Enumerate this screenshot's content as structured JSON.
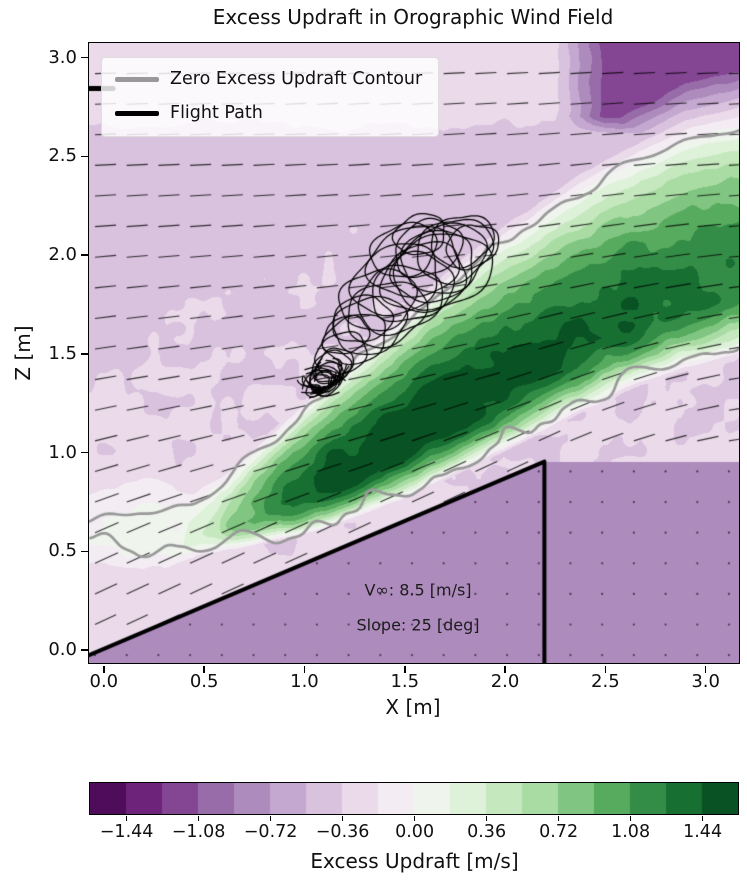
{
  "chart_data": {
    "type": "heatmap",
    "title": "Excess Updraft in Orographic Wind Field",
    "xlabel": "X [m]",
    "ylabel": "Z [m]",
    "xlim": [
      -0.07,
      3.17
    ],
    "ylim": [
      -0.07,
      3.07
    ],
    "xticks": [
      "0.0",
      "0.5",
      "1.0",
      "1.5",
      "2.0",
      "2.5",
      "3.0"
    ],
    "xtick_values": [
      0,
      0.5,
      1,
      1.5,
      2,
      2.5,
      3
    ],
    "yticks": [
      "0.0",
      "0.5",
      "1.0",
      "1.5",
      "2.0",
      "2.5",
      "3.0"
    ],
    "ytick_values": [
      0,
      0.5,
      1,
      1.5,
      2,
      2.5,
      3
    ],
    "grid": false,
    "legend_position": "upper left",
    "legend": [
      {
        "label": "Zero Excess Updraft Contour",
        "color": "#999999",
        "line_width": 5
      },
      {
        "label": "Flight Path",
        "color": "#000000",
        "line_width": 5
      }
    ],
    "annotations": [
      {
        "text": "V∞: 8.5 [m/s]",
        "x": 1.57,
        "y": 0.3
      },
      {
        "text": "Slope: 25 [deg]",
        "x": 1.57,
        "y": 0.12
      }
    ],
    "freestream_velocity_ms": 8.5,
    "slope_deg": 25,
    "colorbar": {
      "label": "Excess Updraft [m/s]",
      "orientation": "horizontal",
      "ticks": [
        "−1.44",
        "−1.08",
        "−0.72",
        "−0.36",
        "0.00",
        "0.36",
        "0.72",
        "1.08",
        "1.44"
      ],
      "tick_values": [
        -1.44,
        -1.08,
        -0.72,
        -0.36,
        0,
        0.36,
        0.72,
        1.08,
        1.44
      ],
      "vmin": -1.62,
      "vmax": 1.62,
      "levels_step": 0.18,
      "colormap": {
        "name": "PRGn",
        "anchors": [
          [
            0,
            "#40004b"
          ],
          [
            0.1,
            "#762a83"
          ],
          [
            0.2,
            "#9970ab"
          ],
          [
            0.3,
            "#c2a5cf"
          ],
          [
            0.4,
            "#e7d4e8"
          ],
          [
            0.5,
            "#f7f7f7"
          ],
          [
            0.6,
            "#d9f0d3"
          ],
          [
            0.7,
            "#a6dba0"
          ],
          [
            0.8,
            "#5aae61"
          ],
          [
            0.9,
            "#1b7837"
          ],
          [
            1,
            "#00441b"
          ]
        ]
      }
    },
    "terrain": {
      "ridge_start": [
        0,
        0
      ],
      "ridge_crest": [
        2.2,
        0.95
      ],
      "cliff_base": [
        2.2,
        -0.07
      ],
      "color": "#000000",
      "line_width": 4
    },
    "zero_contour": {
      "color": "#999999",
      "line_width": 2.7,
      "upper": [
        [
          -0.07,
          0.64
        ],
        [
          0.2,
          0.7
        ],
        [
          0.45,
          0.73
        ],
        [
          0.62,
          0.86
        ],
        [
          0.85,
          1.07
        ],
        [
          1.1,
          1.3
        ],
        [
          1.4,
          1.56
        ],
        [
          1.7,
          1.83
        ],
        [
          2.0,
          2.06
        ],
        [
          2.3,
          2.26
        ],
        [
          2.6,
          2.44
        ],
        [
          2.9,
          2.58
        ],
        [
          3.17,
          2.64
        ]
      ],
      "lower": [
        [
          -0.07,
          0.55
        ],
        [
          0.2,
          0.5
        ],
        [
          0.45,
          0.52
        ],
        [
          0.7,
          0.55
        ],
        [
          0.95,
          0.6
        ],
        [
          1.2,
          0.68
        ],
        [
          1.5,
          0.8
        ],
        [
          1.8,
          0.95
        ],
        [
          2.1,
          1.1
        ],
        [
          2.4,
          1.26
        ],
        [
          2.7,
          1.4
        ],
        [
          3.0,
          1.5
        ],
        [
          3.17,
          1.55
        ]
      ]
    },
    "field": {
      "mask_value": -0.8,
      "terrain_slope": 0.4318,
      "crest_x": 2.2,
      "crest_z": 0.95,
      "band": {
        "peak_frac": 0.28,
        "amplitude": [
          [
            -0.07,
            0.02
          ],
          [
            0.35,
            0.08
          ],
          [
            0.55,
            0.38
          ],
          [
            0.75,
            0.95
          ],
          [
            0.95,
            1.38
          ],
          [
            1.15,
            1.56
          ],
          [
            1.5,
            1.62
          ],
          [
            1.9,
            1.55
          ],
          [
            2.3,
            1.42
          ],
          [
            2.7,
            1.35
          ],
          [
            3.17,
            1.25
          ]
        ]
      },
      "background": {
        "base": -0.28,
        "z_gradient": -0.18,
        "top_light": 0.15,
        "blob": {
          "x": 0.22,
          "z": 0.6,
          "sx": 0.33,
          "sz": 0.2,
          "amp": 0.3
        },
        "top_right": {
          "x_start": 2.25,
          "x_ramp": 0.25,
          "z_start": 2.6,
          "z_ramp": 0.1,
          "amp": -0.85
        }
      },
      "noise": {
        "amp1": 0.12,
        "freq1": 8,
        "amp2": 0.07,
        "freq2": 16
      }
    },
    "quiver": {
      "x0": -0.04,
      "dx": 0.158,
      "nx": 21,
      "z0": -0.03,
      "dz": 0.155,
      "nz": 20,
      "dash_length": 0.105,
      "tilt_max_deg": 25,
      "tilt_decay": 0.9,
      "color": "#000000"
    },
    "flight_path": {
      "color": "#000000",
      "line_width": 1.25,
      "entry_segment": {
        "x1": -0.07,
        "z1": 2.84,
        "x2": 0.05,
        "z2": 2.84,
        "line_width": 5
      },
      "loops": [
        [
          1.08,
          1.35,
          0.05,
          0.04,
          20
        ],
        [
          1.12,
          1.4,
          0.07,
          0.05,
          25
        ],
        [
          1.05,
          1.31,
          0.04,
          0.03,
          15
        ],
        [
          1.16,
          1.45,
          0.09,
          0.07,
          22
        ],
        [
          1.14,
          1.43,
          0.1,
          0.075,
          20
        ],
        [
          1.19,
          1.5,
          0.13,
          0.1,
          18
        ],
        [
          1.26,
          1.57,
          0.16,
          0.12,
          22
        ],
        [
          1.33,
          1.64,
          0.185,
          0.14,
          20
        ],
        [
          1.41,
          1.7,
          0.205,
          0.155,
          24
        ],
        [
          1.48,
          1.77,
          0.215,
          0.165,
          20
        ],
        [
          1.54,
          1.83,
          0.21,
          0.165,
          24
        ],
        [
          1.6,
          1.88,
          0.215,
          0.17,
          20
        ],
        [
          1.65,
          1.93,
          0.21,
          0.165,
          24
        ],
        [
          1.7,
          1.98,
          0.215,
          0.17,
          21
        ],
        [
          1.75,
          2.02,
          0.195,
          0.155,
          23
        ],
        [
          1.69,
          1.92,
          0.25,
          0.19,
          15
        ],
        [
          1.62,
          2.03,
          0.175,
          0.135,
          28
        ],
        [
          1.55,
          1.96,
          0.23,
          0.175,
          12
        ],
        [
          1.46,
          1.87,
          0.225,
          0.17,
          26
        ],
        [
          1.37,
          1.77,
          0.195,
          0.15,
          16
        ],
        [
          1.79,
          2.07,
          0.16,
          0.125,
          20
        ],
        [
          1.84,
          2.04,
          0.135,
          0.105,
          24
        ],
        [
          1.29,
          1.67,
          0.15,
          0.115,
          12
        ],
        [
          1.21,
          1.59,
          0.12,
          0.09,
          26
        ],
        [
          1.58,
          2.1,
          0.13,
          0.1,
          18
        ],
        [
          1.5,
          2.02,
          0.17,
          0.13,
          22
        ]
      ],
      "scribble": {
        "x": 1.1,
        "z": 1.37,
        "rx": 0.14,
        "rz": 0.1,
        "rot_deg": 25,
        "strokes": 34,
        "seed": 7
      }
    }
  }
}
